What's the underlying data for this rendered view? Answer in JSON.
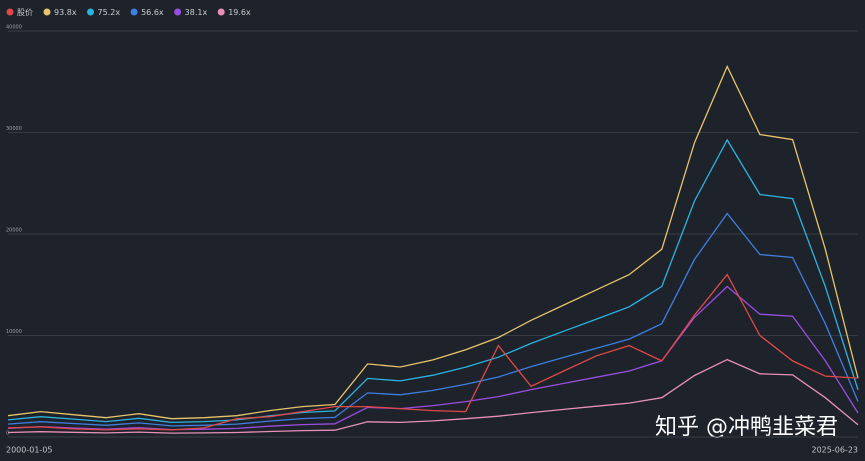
{
  "chart_data": {
    "type": "line",
    "categories": [
      "2000-01-05",
      null,
      null,
      null,
      null,
      null,
      null,
      null,
      null,
      null,
      null,
      null,
      null,
      null,
      null,
      null,
      null,
      null,
      null,
      null,
      null,
      null,
      null,
      null,
      null,
      null,
      "2025-06-23"
    ],
    "series": [
      {
        "name": "股价",
        "color": "#e04848",
        "values": [
          900,
          1000,
          800,
          700,
          800,
          700,
          900,
          1800,
          2000,
          2500,
          3000,
          3000,
          2800,
          2600,
          2500,
          9000,
          5000,
          6500,
          8000,
          9000,
          7500,
          12000,
          16000,
          10000,
          7500,
          6000,
          5800
        ]
      },
      {
        "name": "93.8x",
        "color": "#e8c46a",
        "values": [
          2100,
          2500,
          2200,
          1900,
          2300,
          1800,
          1900,
          2100,
          2600,
          3000,
          3200,
          7200,
          6900,
          7600,
          8600,
          9800,
          11500,
          13000,
          14500,
          16000,
          18500,
          29000,
          36500,
          29800,
          29300,
          18500,
          5800
        ]
      },
      {
        "name": "75.2x",
        "color": "#2bb4e0",
        "values": [
          1680,
          2000,
          1760,
          1520,
          1840,
          1440,
          1520,
          1680,
          2080,
          2410,
          2570,
          5770,
          5530,
          6090,
          6890,
          7860,
          9220,
          10420,
          11620,
          12830,
          14830,
          23250,
          29260,
          23890,
          23490,
          14830,
          4650
        ]
      },
      {
        "name": "56.6x",
        "color": "#3d7ee0",
        "values": [
          1270,
          1510,
          1330,
          1150,
          1390,
          1090,
          1150,
          1270,
          1570,
          1810,
          1930,
          4340,
          4160,
          4590,
          5190,
          5910,
          6940,
          7840,
          8750,
          9650,
          11160,
          17500,
          22020,
          17980,
          17680,
          11160,
          3500
        ]
      },
      {
        "name": "38.1x",
        "color": "#9a4ee0",
        "values": [
          850,
          1020,
          890,
          770,
          930,
          730,
          770,
          850,
          1060,
          1220,
          1300,
          2920,
          2800,
          3090,
          3490,
          3980,
          4670,
          5280,
          5890,
          6500,
          7510,
          11780,
          14830,
          12100,
          11900,
          7510,
          2360
        ]
      },
      {
        "name": "19.6x",
        "color": "#e890b8",
        "values": [
          440,
          520,
          460,
          400,
          480,
          380,
          400,
          440,
          540,
          630,
          670,
          1500,
          1440,
          1590,
          1800,
          2050,
          2400,
          2720,
          3030,
          3340,
          3870,
          6060,
          7630,
          6230,
          6120,
          3870,
          1210
        ]
      }
    ],
    "ylim": [
      0,
      40000
    ],
    "yticks": [
      0,
      10000,
      20000,
      30000,
      40000
    ],
    "grid": true,
    "watermark": "知乎 @冲鸭韭菜君"
  }
}
